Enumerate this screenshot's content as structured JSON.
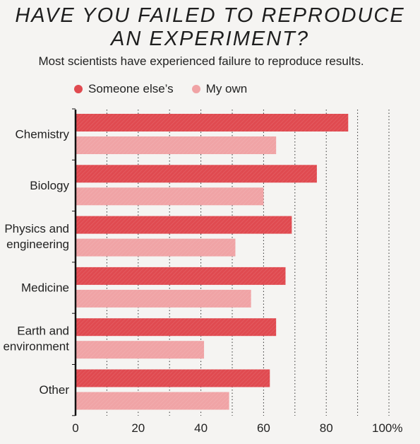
{
  "chart_data": {
    "type": "bar",
    "orientation": "horizontal",
    "title_lines": [
      "HAVE YOU FAILED TO REPRODUCE",
      "AN EXPERIMENT?"
    ],
    "subtitle": "Most scientists have experienced failure to reproduce results.",
    "categories": [
      [
        "Chemistry"
      ],
      [
        "Biology"
      ],
      [
        "Physics and",
        "engineering"
      ],
      [
        "Medicine"
      ],
      [
        "Earth and",
        "environment"
      ],
      [
        "Other"
      ]
    ],
    "series": [
      {
        "name": "Someone else’s",
        "color": "#e04a50",
        "values": [
          87,
          77,
          69,
          67,
          64,
          62
        ]
      },
      {
        "name": "My own",
        "color": "#f0a3a5",
        "values": [
          64,
          60,
          51,
          56,
          41,
          49
        ]
      }
    ],
    "xlim": [
      0,
      100
    ],
    "x_ticks": [
      "0",
      "20",
      "40",
      "60",
      "80",
      "100%"
    ],
    "x_tick_values": [
      0,
      20,
      40,
      60,
      80,
      100
    ],
    "grid": "dotted vertical",
    "legend_position": "top-left"
  }
}
